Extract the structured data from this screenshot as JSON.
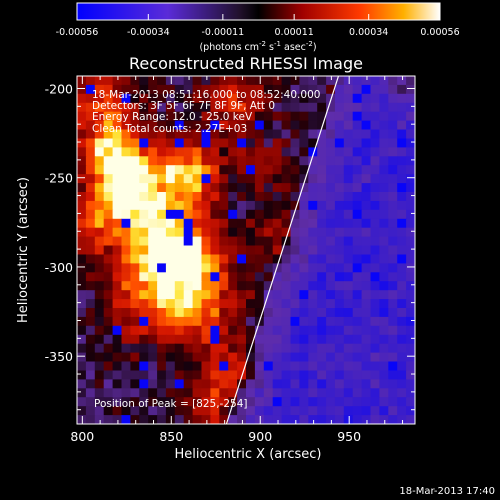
{
  "chart_data": {
    "type": "heatmap",
    "title": "Reconstructed RHESSI Image",
    "xlabel": "Heliocentric X (arcsec)",
    "ylabel": "Heliocentric Y (arcsec)",
    "xlim": [
      797,
      987
    ],
    "ylim": [
      -388,
      -193
    ],
    "xticks": [
      800,
      850,
      900,
      950
    ],
    "yticks": [
      -200,
      -250,
      -300,
      -350
    ],
    "colorbar": {
      "ticks": [
        "-0.00056",
        "-0.00034",
        "-0.00011",
        "0.00011",
        "0.00034",
        "0.00056"
      ],
      "range": [
        -0.00056,
        0.00056
      ],
      "units_prefix": "(photons cm",
      "units_sup1": "-2",
      "units_mid": " s",
      "units_sup2": "-1",
      "units_mid2": " asec",
      "units_sup3": "-2",
      "units_suffix": ")"
    },
    "limb_line": {
      "x": [
        881,
        944
      ],
      "y": [
        -388,
        -193
      ]
    },
    "sources": [
      {
        "x": 825,
        "y": -254,
        "level": 1.0,
        "spread": 14
      },
      {
        "x": 816,
        "y": -232,
        "level": 0.75,
        "spread": 12
      },
      {
        "x": 860,
        "y": -248,
        "level": 0.85,
        "spread": 13
      },
      {
        "x": 842,
        "y": -284,
        "level": 0.8,
        "spread": 16
      },
      {
        "x": 862,
        "y": -298,
        "level": 0.7,
        "spread": 16
      },
      {
        "x": 838,
        "y": -318,
        "level": 0.6,
        "spread": 16
      },
      {
        "x": 866,
        "y": -326,
        "level": 0.55,
        "spread": 14
      },
      {
        "x": 883,
        "y": -357,
        "level": 0.5,
        "spread": 10
      },
      {
        "x": 870,
        "y": -376,
        "level": 0.45,
        "spread": 10
      },
      {
        "x": 809,
        "y": -205,
        "level": 0.55,
        "spread": 12
      },
      {
        "x": 805,
        "y": -276,
        "level": 0.5,
        "spread": 12
      },
      {
        "x": 886,
        "y": -208,
        "level": 0.45,
        "spread": 14
      },
      {
        "x": 907,
        "y": -282,
        "level": 0.3,
        "spread": 10
      },
      {
        "x": 902,
        "y": -244,
        "level": 0.35,
        "spread": 9
      },
      {
        "x": 981,
        "y": -200,
        "level": 0.45,
        "spread": 7
      }
    ],
    "annotations": {
      "time_range": "18-Mar-2013 08:51:16.000 to 08:52:40.000",
      "detectors": "Detectors: 3F 5F 6F 7F 8F 9F, Att 0",
      "energy": "Energy Range: 12.0 - 25.0 keV",
      "clean": "Clean    Total counts: 2.27E+03",
      "peak": "Position of Peak = [825,-254]"
    }
  },
  "footer": {
    "timestamp": "18-Mar-2013 17:40"
  }
}
